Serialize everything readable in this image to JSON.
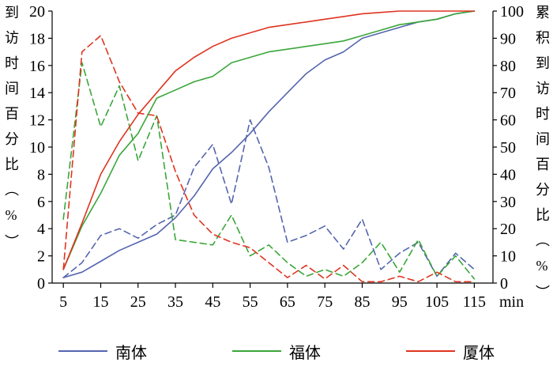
{
  "axes": {
    "left_title": "到访时间百分比（%）",
    "right_title": "累积到访时间百分比（%）",
    "x_unit": "min",
    "left_ticks": [
      0,
      2,
      4,
      6,
      8,
      10,
      12,
      14,
      16,
      18,
      20
    ],
    "right_ticks": [
      0,
      10,
      20,
      30,
      40,
      50,
      60,
      70,
      80,
      90,
      100
    ],
    "x_ticks": [
      5,
      15,
      25,
      35,
      45,
      55,
      65,
      75,
      85,
      95,
      105,
      115
    ]
  },
  "legend": [
    {
      "label": "南体",
      "color": "#5565ae"
    },
    {
      "label": "福体",
      "color": "#3aa63a"
    },
    {
      "label": "厦体",
      "color": "#df3420"
    }
  ],
  "chart_data": {
    "type": "line",
    "xlabel": "min",
    "left_ylabel": "到访时间百分比（%）",
    "right_ylabel": "累积到访时间百分比（%）",
    "xlim": [
      2,
      120
    ],
    "left_ylim": [
      0,
      20
    ],
    "right_ylim": [
      0,
      100
    ],
    "x": [
      5,
      10,
      15,
      20,
      25,
      30,
      35,
      40,
      45,
      50,
      55,
      60,
      65,
      70,
      75,
      80,
      85,
      90,
      95,
      100,
      105,
      110,
      115
    ],
    "series": [
      {
        "name": "南体-到访时间百分比",
        "axis": "left",
        "style": "dashed",
        "color": "#5565ae",
        "values": [
          0.4,
          1.5,
          3.5,
          4.0,
          3.3,
          4.3,
          5.0,
          8.5,
          10.2,
          5.8,
          12.0,
          8.5,
          3.0,
          3.5,
          4.2,
          2.5,
          4.7,
          1.0,
          2.2,
          3.0,
          0.5,
          2.2,
          1.0
        ]
      },
      {
        "name": "福体-到访时间百分比",
        "axis": "left",
        "style": "dashed",
        "color": "#3aa63a",
        "values": [
          4.7,
          16.2,
          11.5,
          14.5,
          9.0,
          12.3,
          3.2,
          3.0,
          2.8,
          5.0,
          2.0,
          2.8,
          1.5,
          0.5,
          1.0,
          0.5,
          1.5,
          3.0,
          0.8,
          3.2,
          0.5,
          2.0,
          0.3
        ]
      },
      {
        "name": "厦体-到访时间百分比",
        "axis": "left",
        "style": "dashed",
        "color": "#df3420",
        "values": [
          1.0,
          17.0,
          18.2,
          14.8,
          12.5,
          12.3,
          8.2,
          5.0,
          3.6,
          3.0,
          2.6,
          1.5,
          0.4,
          1.3,
          0.3,
          1.3,
          0.1,
          0.1,
          0.5,
          0.1,
          0.8,
          0.1,
          0.1
        ]
      },
      {
        "name": "南体-累积到访时间百分比",
        "axis": "right",
        "style": "solid",
        "color": "#5565ae",
        "values": [
          2,
          4,
          8,
          12,
          15,
          18,
          24,
          32,
          42,
          48,
          55,
          63,
          70,
          77,
          82,
          85,
          90,
          92,
          94,
          96,
          97,
          99,
          100
        ]
      },
      {
        "name": "福体-累积到访时间百分比",
        "axis": "right",
        "style": "solid",
        "color": "#3aa63a",
        "values": [
          5,
          21,
          33,
          47,
          55,
          68,
          71,
          74,
          76,
          81,
          83,
          85,
          86,
          87,
          88,
          89,
          91,
          93,
          95,
          96,
          97,
          99,
          100
        ]
      },
      {
        "name": "厦体-累积到访时间百分比",
        "axis": "right",
        "style": "solid",
        "color": "#df3420",
        "values": [
          5,
          22,
          40,
          52,
          62,
          70,
          78,
          83,
          87,
          90,
          92,
          94,
          95,
          96,
          97,
          98,
          99,
          99.5,
          100,
          100,
          100,
          100,
          100
        ]
      }
    ]
  }
}
